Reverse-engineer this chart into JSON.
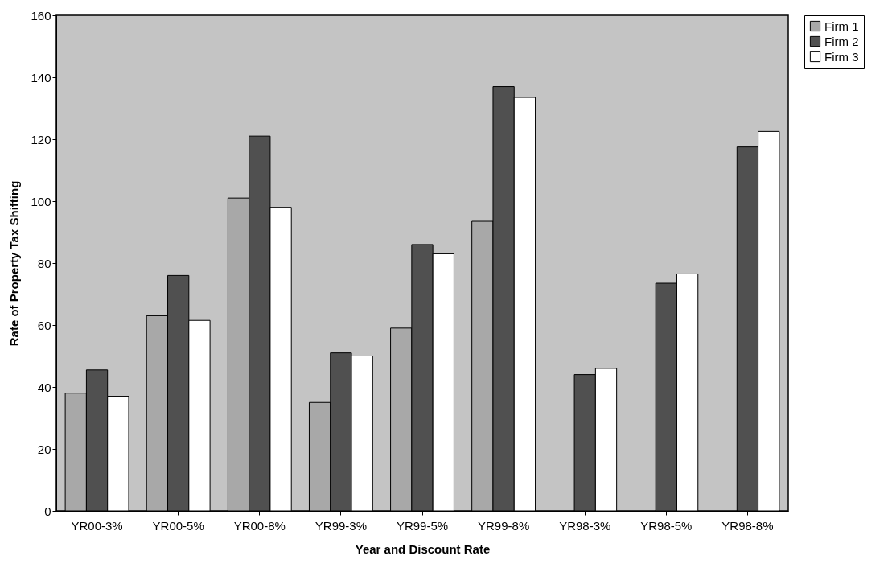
{
  "chart_data": {
    "type": "bar",
    "xlabel": "Year and Discount Rate",
    "ylabel": "Rate of Property Tax Shifting",
    "categories": [
      "YR00-3%",
      "YR00-5%",
      "YR00-8%",
      "YR99-3%",
      "YR99-5%",
      "YR99-8%",
      "YR98-3%",
      "YR98-5%",
      "YR98-8%"
    ],
    "series": [
      {
        "name": "Firm 1",
        "color": "#a8a8a8",
        "values": [
          38,
          63,
          101,
          35,
          59,
          93.5,
          null,
          null,
          null
        ]
      },
      {
        "name": "Firm 2",
        "color": "#505050",
        "values": [
          45.5,
          76,
          121,
          51,
          86,
          137,
          44,
          73.5,
          117.5
        ]
      },
      {
        "name": "Firm 3",
        "color": "#ffffff",
        "values": [
          37,
          61.5,
          98,
          50,
          83,
          133.5,
          46,
          76.5,
          122.5
        ]
      }
    ],
    "ylim": [
      0,
      160
    ],
    "yticks": [
      0,
      20,
      40,
      60,
      80,
      100,
      120,
      140,
      160
    ],
    "grid": false,
    "legend": "right"
  }
}
